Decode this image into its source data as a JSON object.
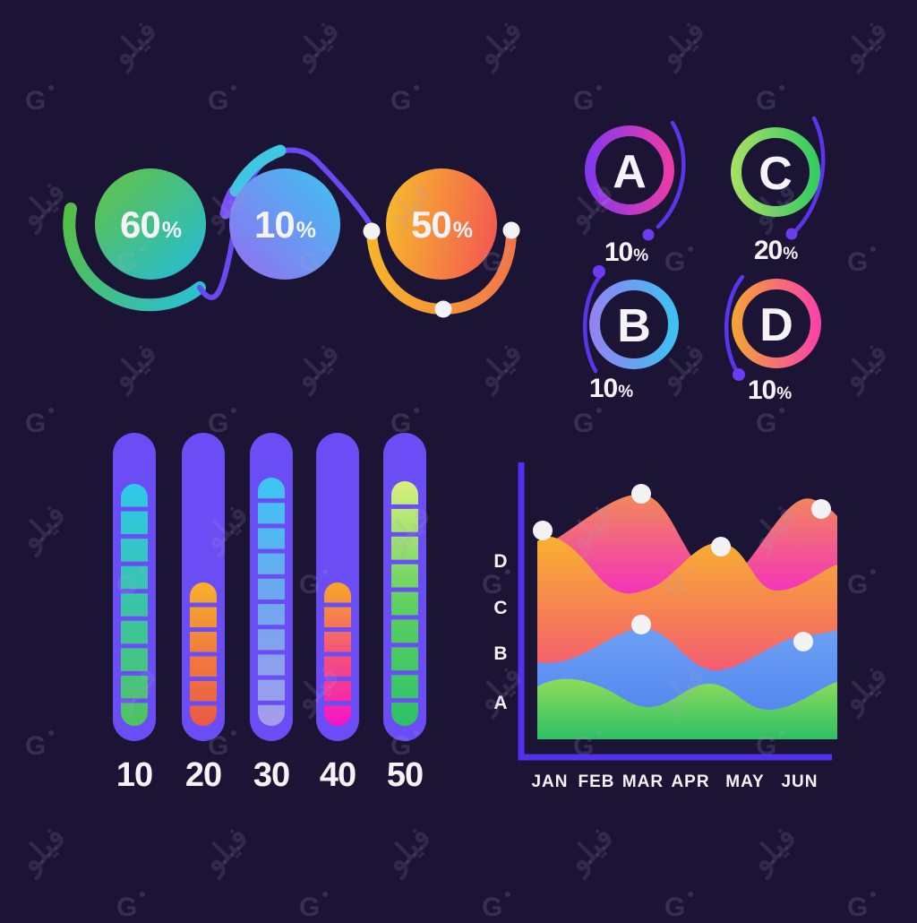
{
  "background_color": "#1B1435",
  "watermark": {
    "brand_text": "فيلو",
    "logo_letter": "G"
  },
  "flow_chart": {
    "steps": [
      {
        "value": "60",
        "unit": "%",
        "colors": [
          "#5FC24C",
          "#25BCD4"
        ]
      },
      {
        "value": "10",
        "unit": "%",
        "colors": [
          "#9072F2",
          "#43BEF0"
        ]
      },
      {
        "value": "50",
        "unit": "%",
        "colors": [
          "#F8B62C",
          "#F25B51"
        ]
      }
    ]
  },
  "ring_charts": {
    "items": [
      {
        "letter": "A",
        "value": "10",
        "unit": "%",
        "colors": [
          "#8138F0",
          "#EF3BA6"
        ]
      },
      {
        "letter": "C",
        "value": "20",
        "unit": "%",
        "colors": [
          "#A9E065",
          "#30CB60"
        ]
      },
      {
        "letter": "B",
        "value": "10",
        "unit": "%",
        "colors": [
          "#9481F2",
          "#3BC3F2"
        ]
      },
      {
        "letter": "D",
        "value": "10",
        "unit": "%",
        "colors": [
          "#F3A634",
          "#FA3FAD"
        ]
      }
    ]
  },
  "bar_chart": {
    "track_color": "#6B4DF6",
    "bars": [
      {
        "label": "10",
        "segments": 9,
        "fill_height": 270,
        "color_top": "#2EC8EC",
        "color_mid": "#3AC4A6",
        "color_bottom": "#4EC45F"
      },
      {
        "label": "20",
        "segments": 6,
        "fill_height": 160,
        "color_top": "#F8B12A",
        "color_mid": "#F07B3E",
        "color_bottom": "#EA5847"
      },
      {
        "label": "30",
        "segments": 10,
        "fill_height": 277,
        "color_top": "#3AC6F2",
        "color_mid": "#6FA6F0",
        "color_bottom": "#A59EEA"
      },
      {
        "label": "40",
        "segments": 6,
        "fill_height": 160,
        "color_top": "#F6A827",
        "color_mid": "#F4527C",
        "color_bottom": "#F514C5"
      },
      {
        "label": "50",
        "segments": 9,
        "fill_height": 273,
        "color_top": "#D8F07D",
        "color_mid": "#5ED060",
        "color_bottom": "#2CC168"
      }
    ]
  },
  "wave_chart": {
    "x_labels": [
      "JAN",
      "FEB",
      "MAR",
      "APR",
      "MAY",
      "JUN"
    ],
    "y_labels": [
      "D",
      "C",
      "B",
      "A"
    ],
    "axis_color": "#5131F0",
    "dot_color": "#F3F3F6"
  },
  "chart_data": [
    {
      "type": "pie",
      "subtype": "progress-circles",
      "categories": [
        "step-1",
        "step-2",
        "step-3"
      ],
      "values": [
        60,
        10,
        50
      ],
      "labels": [
        "60%",
        "10%",
        "50%"
      ],
      "title": "",
      "legend_position": "none"
    },
    {
      "type": "pie",
      "subtype": "progress-rings",
      "categories": [
        "A",
        "C",
        "B",
        "D"
      ],
      "values": [
        10,
        20,
        10,
        10
      ],
      "labels": [
        "10%",
        "20%",
        "10%",
        "10%"
      ],
      "title": "",
      "legend_position": "none"
    },
    {
      "type": "bar",
      "categories": [
        "10",
        "20",
        "30",
        "40",
        "50"
      ],
      "values": [
        9,
        6,
        10,
        6,
        9
      ],
      "note": "values are visible segment counts; bar fill fractions ~ [0.78, 0.47, 0.80, 0.47, 0.79]",
      "xlabel": "",
      "ylabel": "",
      "grid": false
    },
    {
      "type": "area",
      "x": [
        "JAN",
        "FEB",
        "MAR",
        "APR",
        "MAY",
        "JUN"
      ],
      "y_axis_labels": [
        "A",
        "B",
        "C",
        "D"
      ],
      "series": [
        {
          "name": "magenta-wave",
          "values": [
            4.4,
            5.1,
            5.6,
            3.9,
            3.7,
            5.5
          ]
        },
        {
          "name": "orange-wave",
          "values": [
            4.7,
            4.2,
            3.5,
            4.5,
            3.5,
            4.1
          ]
        },
        {
          "name": "blue-wave",
          "values": [
            2.0,
            2.1,
            2.7,
            1.8,
            2.2,
            2.6
          ]
        },
        {
          "name": "green-wave",
          "values": [
            1.5,
            1.6,
            1.0,
            1.5,
            1.0,
            1.5
          ]
        }
      ],
      "grid": false,
      "legend_position": "none"
    }
  ]
}
